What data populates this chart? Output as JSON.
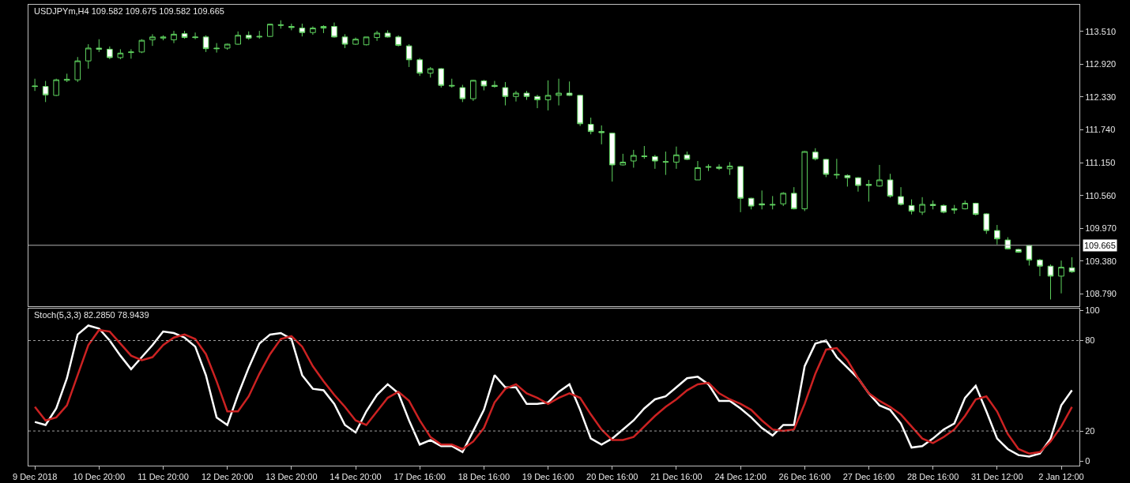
{
  "chart_data": [
    {
      "type": "candlestick",
      "title": "USDJPYm,H4 109.582 109.675 109.582 109.665",
      "color": "#5fd35f",
      "grid": false,
      "tick_labels": "y",
      "ohlc": [
        [
          112.53,
          112.66,
          112.44,
          112.52
        ],
        [
          112.52,
          112.62,
          112.24,
          112.37
        ],
        [
          112.36,
          112.66,
          112.35,
          112.64
        ],
        [
          112.63,
          112.75,
          112.6,
          112.65
        ],
        [
          112.64,
          113.05,
          112.6,
          112.98
        ],
        [
          112.98,
          113.28,
          112.84,
          113.21
        ],
        [
          113.21,
          113.37,
          113.14,
          113.19
        ],
        [
          113.19,
          113.24,
          113.01,
          113.04
        ],
        [
          113.04,
          113.19,
          113.01,
          113.12
        ],
        [
          113.13,
          113.19,
          113.02,
          113.14
        ],
        [
          113.14,
          113.37,
          113.12,
          113.35
        ],
        [
          113.36,
          113.46,
          113.25,
          113.41
        ],
        [
          113.39,
          113.44,
          113.35,
          113.41
        ],
        [
          113.36,
          113.52,
          113.3,
          113.46
        ],
        [
          113.47,
          113.52,
          113.38,
          113.4
        ],
        [
          113.41,
          113.49,
          113.37,
          113.4
        ],
        [
          113.41,
          113.44,
          113.14,
          113.2
        ],
        [
          113.21,
          113.3,
          113.13,
          113.2
        ],
        [
          113.21,
          113.29,
          113.18,
          113.28
        ],
        [
          113.28,
          113.51,
          113.27,
          113.44
        ],
        [
          113.44,
          113.51,
          113.36,
          113.39
        ],
        [
          113.41,
          113.52,
          113.38,
          113.42
        ],
        [
          113.42,
          113.65,
          113.41,
          113.64
        ],
        [
          113.63,
          113.71,
          113.56,
          113.62
        ],
        [
          113.6,
          113.65,
          113.53,
          113.58
        ],
        [
          113.57,
          113.65,
          113.42,
          113.49
        ],
        [
          113.49,
          113.6,
          113.45,
          113.57
        ],
        [
          113.57,
          113.62,
          113.48,
          113.6
        ],
        [
          113.6,
          113.67,
          113.4,
          113.41
        ],
        [
          113.41,
          113.46,
          113.21,
          113.28
        ],
        [
          113.28,
          113.4,
          113.27,
          113.37
        ],
        [
          113.27,
          113.41,
          113.26,
          113.41
        ],
        [
          113.4,
          113.52,
          113.34,
          113.48
        ],
        [
          113.48,
          113.53,
          113.4,
          113.41
        ],
        [
          113.41,
          113.44,
          113.24,
          113.26
        ],
        [
          113.25,
          113.28,
          112.87,
          113.0
        ],
        [
          113.0,
          113.03,
          112.71,
          112.76
        ],
        [
          112.76,
          112.87,
          112.68,
          112.84
        ],
        [
          112.84,
          112.85,
          112.5,
          112.54
        ],
        [
          112.54,
          112.66,
          112.5,
          112.53
        ],
        [
          112.5,
          112.55,
          112.24,
          112.3
        ],
        [
          112.3,
          112.64,
          112.26,
          112.63
        ],
        [
          112.62,
          112.64,
          112.45,
          112.53
        ],
        [
          112.54,
          112.62,
          112.5,
          112.52
        ],
        [
          112.5,
          112.6,
          112.18,
          112.34
        ],
        [
          112.34,
          112.44,
          112.25,
          112.4
        ],
        [
          112.4,
          112.44,
          112.28,
          112.34
        ],
        [
          112.34,
          112.37,
          112.13,
          112.28
        ],
        [
          112.28,
          112.63,
          112.09,
          112.36
        ],
        [
          112.36,
          112.66,
          112.18,
          112.4
        ],
        [
          112.4,
          112.61,
          112.35,
          112.36
        ],
        [
          112.36,
          112.37,
          111.81,
          111.85
        ],
        [
          111.84,
          111.96,
          111.66,
          111.71
        ],
        [
          111.71,
          111.82,
          111.48,
          111.69
        ],
        [
          111.68,
          111.69,
          110.81,
          111.11
        ],
        [
          111.11,
          111.31,
          111.1,
          111.16
        ],
        [
          111.18,
          111.38,
          111.06,
          111.28
        ],
        [
          111.27,
          111.45,
          111.22,
          111.26
        ],
        [
          111.26,
          111.29,
          111.04,
          111.18
        ],
        [
          111.17,
          111.35,
          110.93,
          111.16
        ],
        [
          111.16,
          111.44,
          111.04,
          111.29
        ],
        [
          111.29,
          111.35,
          111.2,
          111.21
        ],
        [
          110.84,
          111.18,
          110.84,
          111.06
        ],
        [
          111.08,
          111.12,
          111.0,
          111.07
        ],
        [
          111.07,
          111.12,
          111.02,
          111.05
        ],
        [
          111.04,
          111.16,
          110.93,
          111.09
        ],
        [
          111.08,
          111.09,
          110.26,
          110.51
        ],
        [
          110.51,
          110.52,
          110.31,
          110.37
        ],
        [
          110.41,
          110.65,
          110.31,
          110.39
        ],
        [
          110.4,
          110.55,
          110.31,
          110.39
        ],
        [
          110.41,
          110.62,
          110.37,
          110.6
        ],
        [
          110.6,
          110.71,
          110.31,
          110.32
        ],
        [
          110.32,
          111.36,
          110.28,
          111.35
        ],
        [
          111.34,
          111.41,
          111.19,
          111.22
        ],
        [
          111.21,
          111.22,
          110.89,
          110.94
        ],
        [
          110.94,
          111.22,
          110.86,
          110.93
        ],
        [
          110.92,
          110.94,
          110.72,
          110.88
        ],
        [
          110.88,
          110.89,
          110.63,
          110.74
        ],
        [
          110.76,
          110.84,
          110.45,
          110.74
        ],
        [
          110.73,
          111.11,
          110.72,
          110.84
        ],
        [
          110.84,
          110.95,
          110.52,
          110.55
        ],
        [
          110.54,
          110.71,
          110.38,
          110.4
        ],
        [
          110.38,
          110.49,
          110.22,
          110.28
        ],
        [
          110.26,
          110.53,
          110.21,
          110.4
        ],
        [
          110.4,
          110.47,
          110.31,
          110.38
        ],
        [
          110.38,
          110.4,
          110.24,
          110.26
        ],
        [
          110.32,
          110.39,
          110.23,
          110.3
        ],
        [
          110.32,
          110.47,
          110.31,
          110.42
        ],
        [
          110.42,
          110.43,
          110.2,
          110.22
        ],
        [
          110.23,
          110.24,
          109.87,
          109.93
        ],
        [
          109.93,
          110.03,
          109.68,
          109.78
        ],
        [
          109.76,
          109.81,
          109.59,
          109.6
        ],
        [
          109.59,
          109.6,
          109.53,
          109.54
        ],
        [
          109.66,
          109.67,
          109.3,
          109.4
        ],
        [
          109.4,
          109.42,
          109.11,
          109.29
        ],
        [
          109.29,
          109.32,
          108.69,
          109.11
        ],
        [
          109.11,
          109.39,
          108.8,
          109.27
        ],
        [
          109.26,
          109.45,
          109.17,
          109.19
        ]
      ],
      "ylim": [
        108.57,
        113.99
      ],
      "yticks": [
        {
          "value": 108.79,
          "label": "108.790"
        },
        {
          "value": 109.38,
          "label": "109.380"
        },
        {
          "value": 109.97,
          "label": "109.970"
        },
        {
          "value": 110.56,
          "label": "110.560"
        },
        {
          "value": 111.15,
          "label": "111.150"
        },
        {
          "value": 111.74,
          "label": "111.740"
        },
        {
          "value": 112.33,
          "label": "112.330"
        },
        {
          "value": 112.92,
          "label": "112.920"
        },
        {
          "value": 113.51,
          "label": "113.510"
        }
      ],
      "ref_lines": [
        {
          "axis": "y",
          "value": 109.665,
          "label": "109.665",
          "color": "#b0b0b0",
          "line_style": "solid"
        }
      ]
    },
    {
      "type": "line",
      "title": "Stoch(5,3,3) 82.2850 78.9439",
      "grid": false,
      "categories": [
        "9 Dec 2018",
        null,
        null,
        null,
        null,
        null,
        "10 Dec 20:00",
        null,
        null,
        null,
        null,
        null,
        "11 Dec 20:00",
        null,
        null,
        null,
        null,
        null,
        "12 Dec 20:00",
        null,
        null,
        null,
        null,
        null,
        "13 Dec 20:00",
        null,
        null,
        null,
        null,
        null,
        "14 Dec 20:00",
        null,
        null,
        null,
        null,
        null,
        "17 Dec 16:00",
        null,
        null,
        null,
        null,
        null,
        "18 Dec 16:00",
        null,
        null,
        null,
        null,
        null,
        "19 Dec 16:00",
        null,
        null,
        null,
        null,
        null,
        "20 Dec 16:00",
        null,
        null,
        null,
        null,
        null,
        "21 Dec 16:00",
        null,
        null,
        null,
        null,
        null,
        "24 Dec 12:00",
        null,
        null,
        null,
        null,
        null,
        "26 Dec 16:00",
        null,
        null,
        null,
        null,
        null,
        "27 Dec 16:00",
        null,
        null,
        null,
        null,
        null,
        "28 Dec 16:00",
        null,
        null,
        null,
        null,
        null,
        "31 Dec 12:00",
        null,
        null,
        null,
        null,
        null,
        "2 Jan 12:00",
        null
      ],
      "series": [
        {
          "color": "#ffffff",
          "values": [
            26,
            24,
            35,
            55,
            84,
            90,
            88,
            80,
            70,
            61,
            69,
            77,
            86,
            85,
            82,
            76,
            57,
            29,
            24,
            44,
            62,
            78,
            84,
            85,
            81,
            57,
            48,
            47,
            38,
            24,
            19,
            33,
            44,
            51,
            45,
            27,
            11,
            14,
            10,
            10,
            6,
            20,
            34,
            57,
            49,
            49,
            38,
            38,
            39,
            46,
            51,
            34,
            15,
            11,
            15,
            21,
            27,
            35,
            41,
            43,
            49,
            55,
            56,
            51,
            40,
            40,
            35,
            29,
            22,
            17,
            24,
            24,
            63,
            78,
            80,
            69,
            62,
            55,
            45,
            37,
            34,
            25,
            9,
            10,
            15,
            21,
            25,
            42,
            50,
            33,
            15,
            8,
            4,
            3,
            5,
            15,
            37,
            47
          ]
        },
        {
          "color": "#cc2222",
          "values": [
            36,
            27,
            29,
            37,
            57,
            77,
            87,
            86,
            78,
            70,
            67,
            69,
            77,
            82,
            84,
            81,
            71,
            53,
            33,
            33,
            43,
            58,
            71,
            81,
            83,
            76,
            63,
            53,
            44,
            36,
            27,
            24,
            33,
            42,
            46,
            40,
            27,
            16,
            11,
            11,
            8,
            13,
            22,
            39,
            48,
            51,
            45,
            42,
            38,
            42,
            45,
            42,
            31,
            21,
            14,
            14,
            16,
            23,
            30,
            36,
            41,
            47,
            51,
            52,
            45,
            41,
            38,
            34,
            27,
            21,
            20,
            21,
            38,
            58,
            74,
            75,
            67,
            55,
            45,
            40,
            36,
            31,
            23,
            15,
            12,
            16,
            21,
            30,
            41,
            43,
            33,
            18,
            8,
            5,
            6,
            13,
            23,
            36
          ]
        }
      ],
      "ylim": [
        -3,
        101
      ],
      "yticks": [
        0,
        20,
        80,
        100
      ],
      "ref_lines": [
        {
          "axis": "y",
          "value": 80,
          "color": "#a0a0a0",
          "line_style": "dotted"
        },
        {
          "axis": "y",
          "value": 20,
          "color": "#a0a0a0",
          "line_style": "dotted"
        }
      ]
    }
  ]
}
